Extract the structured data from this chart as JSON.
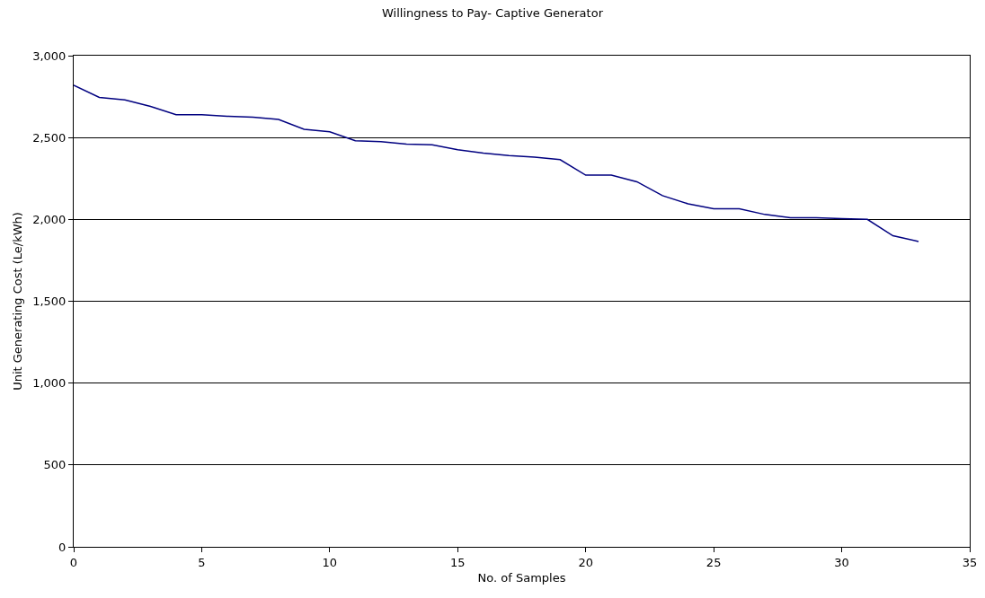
{
  "chart_data": {
    "type": "line",
    "title": "Willingness to Pay- Captive Generator",
    "xlabel": "No. of Samples",
    "ylabel": "Unit Generating Cost (Le/kWh)",
    "x": [
      0,
      1,
      2,
      3,
      4,
      5,
      6,
      7,
      8,
      9,
      10,
      11,
      12,
      13,
      14,
      15,
      16,
      17,
      18,
      19,
      20,
      21,
      22,
      23,
      24,
      25,
      26,
      27,
      28,
      29,
      30,
      31,
      32,
      33
    ],
    "series": [
      {
        "color": "#000080",
        "values": [
          2820,
          2745,
          2730,
          2690,
          2640,
          2640,
          2630,
          2625,
          2610,
          2550,
          2535,
          2480,
          2475,
          2460,
          2455,
          2425,
          2405,
          2390,
          2380,
          2365,
          2270,
          2270,
          2230,
          2145,
          2095,
          2065,
          2065,
          2030,
          2010,
          2010,
          2005,
          2000,
          1900,
          1865
        ]
      }
    ],
    "xlim": [
      0,
      35
    ],
    "xticks": [
      0,
      5,
      10,
      15,
      20,
      25,
      30,
      35
    ],
    "ylim": [
      0,
      3000
    ],
    "yticks": [
      0,
      {
        "value": 500,
        "label": "500"
      },
      {
        "value": 1000,
        "label": "1,000"
      },
      {
        "value": 1500,
        "label": "1,500"
      },
      {
        "value": 2000,
        "label": "2,000"
      },
      {
        "value": 2500,
        "label": "2,500"
      },
      {
        "value": 3000,
        "label": "3,000"
      }
    ],
    "grid": "y",
    "marker": "none",
    "line_style": "solid"
  }
}
